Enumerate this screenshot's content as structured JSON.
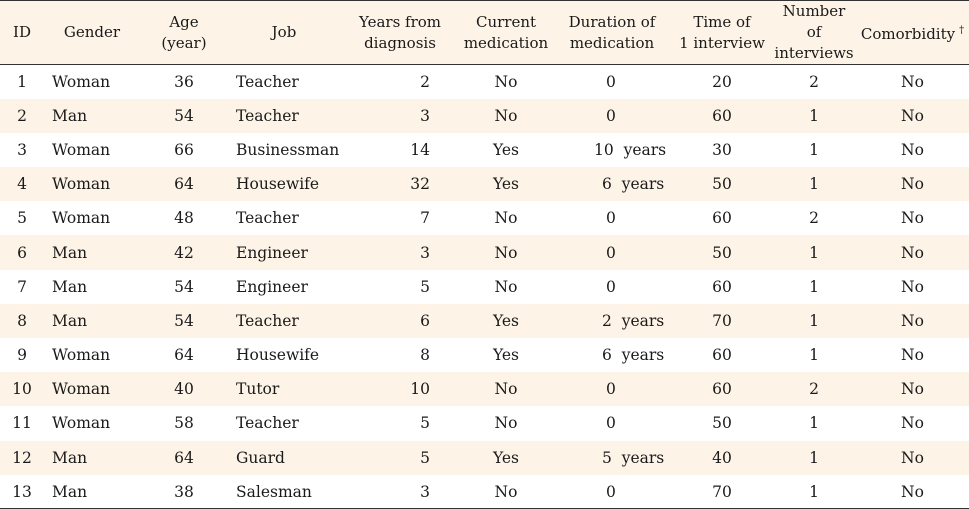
{
  "headers": {
    "id": "ID",
    "gender": "Gender",
    "age_line1": "Age",
    "age_line2": "(year)",
    "job": "Job",
    "years_line1": "Years from",
    "years_line2": "diagnosis",
    "med_line1": "Current",
    "med_line2": "medication",
    "dur_line1": "Duration of",
    "dur_line2": "medication",
    "time_line1": "Time of",
    "time_line2": "1 interview",
    "num_line1": "Number of",
    "num_line2": "interviews",
    "comorbidity": "Comorbidity",
    "comorbidity_mark": "†"
  },
  "rows": [
    [
      "1",
      "Woman",
      "36",
      "Teacher",
      "2",
      "No",
      "0",
      "20",
      "2",
      "No"
    ],
    [
      "2",
      "Man",
      "54",
      "Teacher",
      "3",
      "No",
      "0",
      "60",
      "1",
      "No"
    ],
    [
      "3",
      "Woman",
      "66",
      "Businessman",
      "14",
      "Yes",
      "10  years",
      "30",
      "1",
      "No"
    ],
    [
      "4",
      "Woman",
      "64",
      "Housewife",
      "32",
      "Yes",
      "6  years",
      "50",
      "1",
      "No"
    ],
    [
      "5",
      "Woman",
      "48",
      "Teacher",
      "7",
      "No",
      "0",
      "60",
      "2",
      "No"
    ],
    [
      "6",
      "Man",
      "42",
      "Engineer",
      "3",
      "No",
      "0",
      "50",
      "1",
      "No"
    ],
    [
      "7",
      "Man",
      "54",
      "Engineer",
      "5",
      "No",
      "0",
      "60",
      "1",
      "No"
    ],
    [
      "8",
      "Man",
      "54",
      "Teacher",
      "6",
      "Yes",
      "2  years",
      "70",
      "1",
      "No"
    ],
    [
      "9",
      "Woman",
      "64",
      "Housewife",
      "8",
      "Yes",
      "6  years",
      "60",
      "1",
      "No"
    ],
    [
      "10",
      "Woman",
      "40",
      "Tutor",
      "10",
      "No",
      "0",
      "60",
      "2",
      "No"
    ],
    [
      "11",
      "Woman",
      "58",
      "Teacher",
      "5",
      "No",
      "0",
      "50",
      "1",
      "No"
    ],
    [
      "12",
      "Man",
      "64",
      "Guard",
      "5",
      "Yes",
      "5  years",
      "40",
      "1",
      "No"
    ],
    [
      "13",
      "Man",
      "38",
      "Salesman",
      "3",
      "No",
      "0",
      "70",
      "1",
      "No"
    ]
  ]
}
